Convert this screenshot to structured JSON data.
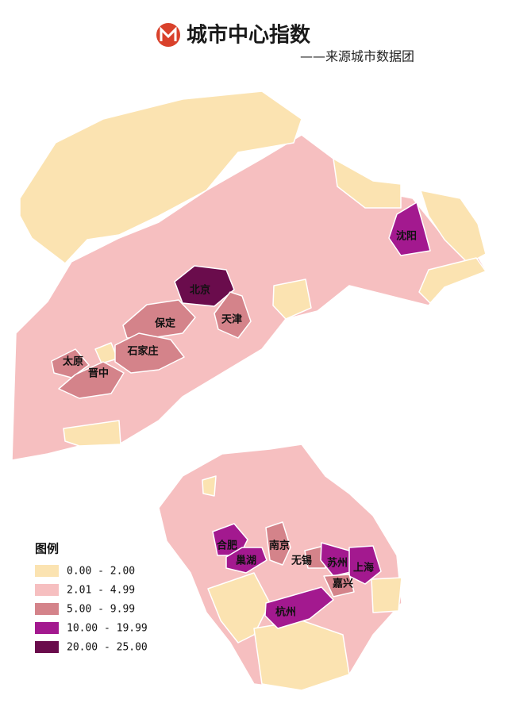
{
  "header": {
    "title": "城市中心指数",
    "subtitle": "——来源城市数据团"
  },
  "legend": {
    "title": "图例",
    "items": [
      {
        "label": "0.00 - 2.00",
        "color": "#fbe3b1"
      },
      {
        "label": "2.01 - 4.99",
        "color": "#f6bfc0"
      },
      {
        "label": "5.00 - 9.99",
        "color": "#d4838a"
      },
      {
        "label": "10.00 - 19.99",
        "color": "#a3198f"
      },
      {
        "label": "20.00 - 25.00",
        "color": "#6a0c4c"
      }
    ]
  },
  "cities": [
    {
      "name": "沈阳",
      "color": "#a3198f"
    },
    {
      "name": "北京",
      "color": "#6a0c4c"
    },
    {
      "name": "天津",
      "color": "#d4838a"
    },
    {
      "name": "保定",
      "color": "#d4838a"
    },
    {
      "name": "石家庄",
      "color": "#d4838a"
    },
    {
      "name": "太原",
      "color": "#d4838a"
    },
    {
      "name": "晋中",
      "color": "#d4838a"
    },
    {
      "name": "合肥",
      "color": "#a3198f"
    },
    {
      "name": "巢湖",
      "color": "#a3198f"
    },
    {
      "name": "南京",
      "color": "#d4838a"
    },
    {
      "name": "无锡",
      "color": "#d4838a"
    },
    {
      "name": "苏州",
      "color": "#a3198f"
    },
    {
      "name": "上海",
      "color": "#a3198f"
    },
    {
      "name": "嘉兴",
      "color": "#d4838a"
    },
    {
      "name": "杭州",
      "color": "#a3198f"
    }
  ]
}
